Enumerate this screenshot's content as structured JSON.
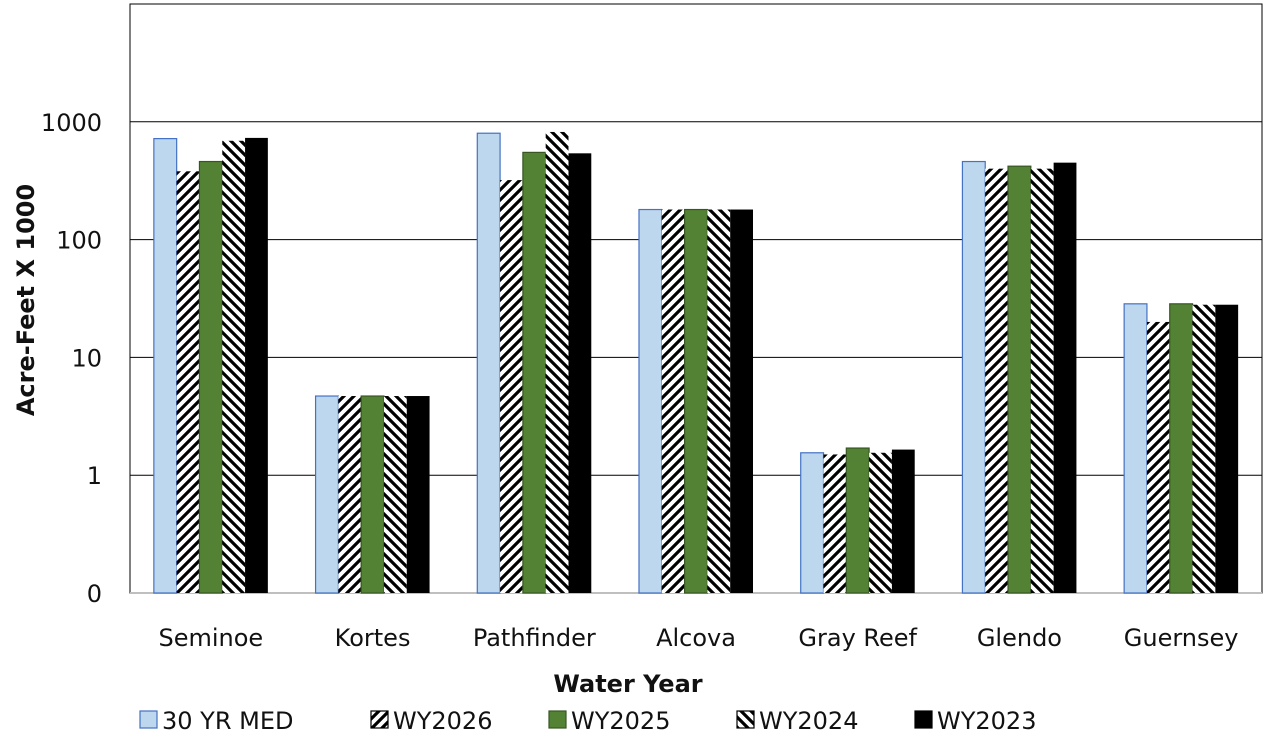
{
  "chart_data": {
    "type": "bar",
    "title": "",
    "xlabel": "Water Year",
    "ylabel": "Acre-Feet X 1000",
    "yscale": "log",
    "ylim": [
      0.1,
      10000
    ],
    "yticks": [
      {
        "value": 0.1,
        "label": "0"
      },
      {
        "value": 1,
        "label": "1"
      },
      {
        "value": 10,
        "label": "10"
      },
      {
        "value": 100,
        "label": "100"
      },
      {
        "value": 1000,
        "label": "1000"
      }
    ],
    "grid": true,
    "legend_position": "bottom",
    "categories": [
      "Seminoe",
      "Kortes",
      "Pathfinder",
      "Alcova",
      "Gray Reef",
      "Glendo",
      "Guernsey"
    ],
    "series": [
      {
        "name": "30 YR MED",
        "style": "solid-light",
        "color": "#bdd7ee",
        "stroke": "#4472c4",
        "values": [
          720,
          4.7,
          800,
          180,
          1.55,
          460,
          28.5
        ]
      },
      {
        "name": "WY2026",
        "style": "hatch-up",
        "color": "#000000",
        "values": [
          380,
          4.7,
          320,
          180,
          1.5,
          400,
          20
        ]
      },
      {
        "name": "WY2025",
        "style": "solid-green",
        "color": "#548235",
        "stroke": "#375623",
        "values": [
          460,
          4.7,
          550,
          180,
          1.7,
          420,
          28.5
        ]
      },
      {
        "name": "WY2024",
        "style": "hatch-down",
        "color": "#000000",
        "values": [
          690,
          4.7,
          820,
          180,
          1.55,
          400,
          28
        ]
      },
      {
        "name": "WY2023",
        "style": "solid-black",
        "color": "#000000",
        "values": [
          730,
          4.7,
          540,
          180,
          1.65,
          450,
          28
        ]
      }
    ]
  }
}
